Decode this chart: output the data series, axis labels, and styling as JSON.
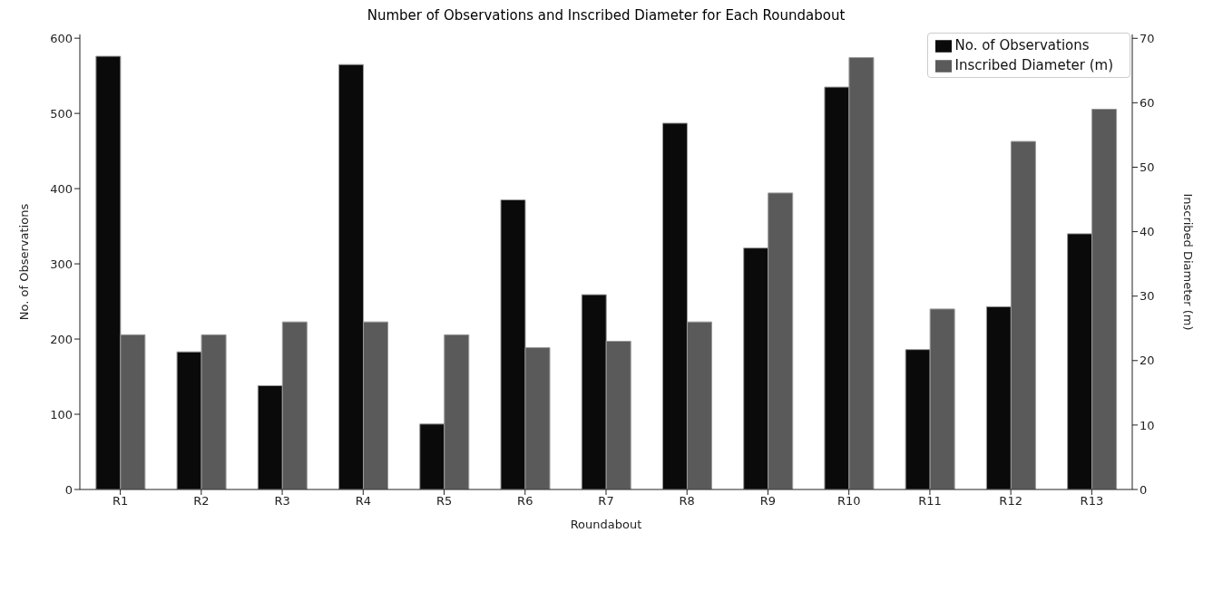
{
  "chart_data": {
    "type": "bar",
    "title": "Number of Observations and Inscribed Diameter for Each Roundabout",
    "xlabel": "Roundabout",
    "ylabel": "No. of Observations",
    "y2label": "Inscribed Diameter (m)",
    "categories": [
      "R1",
      "R2",
      "R3",
      "R4",
      "R5",
      "R6",
      "R7",
      "R8",
      "R9",
      "R10",
      "R11",
      "R12",
      "R13"
    ],
    "series": [
      {
        "name": "No. of Observations",
        "color": "#0a0a0a",
        "values": [
          576,
          183,
          138,
          565,
          87,
          385,
          259,
          487,
          321,
          535,
          186,
          243,
          340
        ]
      },
      {
        "name": "Inscribed Diameter (m)",
        "color": "#5a5a5a",
        "axis": "y2",
        "values": [
          24,
          24,
          26,
          26,
          24,
          22,
          23,
          26,
          46,
          67,
          28,
          54,
          59
        ]
      }
    ],
    "ylim": [
      0,
      605
    ],
    "yticks": [
      0,
      100,
      200,
      300,
      400,
      500,
      600
    ],
    "y2lim": [
      0,
      70.6
    ],
    "y2ticks": [
      0,
      10,
      20,
      30,
      40,
      50,
      60,
      70
    ],
    "grid": false,
    "legend": "top right"
  }
}
